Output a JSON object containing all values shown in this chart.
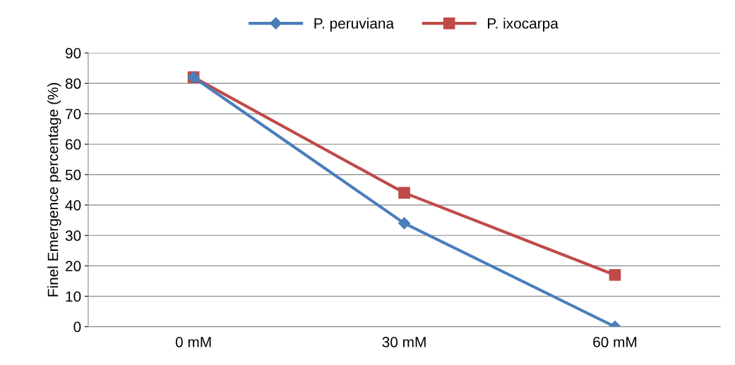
{
  "chart_data": {
    "type": "line",
    "ylabel": "Finel Emergence percentage (%)",
    "categories": [
      "0 mM",
      "30 mM",
      "60 mM"
    ],
    "series": [
      {
        "name": "P. peruviana",
        "color": "#4a7ebb",
        "marker": "diamond",
        "values": [
          82,
          34,
          0
        ]
      },
      {
        "name": "P. ixocarpa",
        "color": "#be4b48",
        "marker": "square",
        "values": [
          82,
          44,
          17
        ]
      }
    ],
    "ylim": [
      0,
      90
    ],
    "yticks": [
      0,
      10,
      20,
      30,
      40,
      50,
      60,
      70,
      80,
      90
    ],
    "grid": "y",
    "legend": "top",
    "line_style": "solid"
  }
}
